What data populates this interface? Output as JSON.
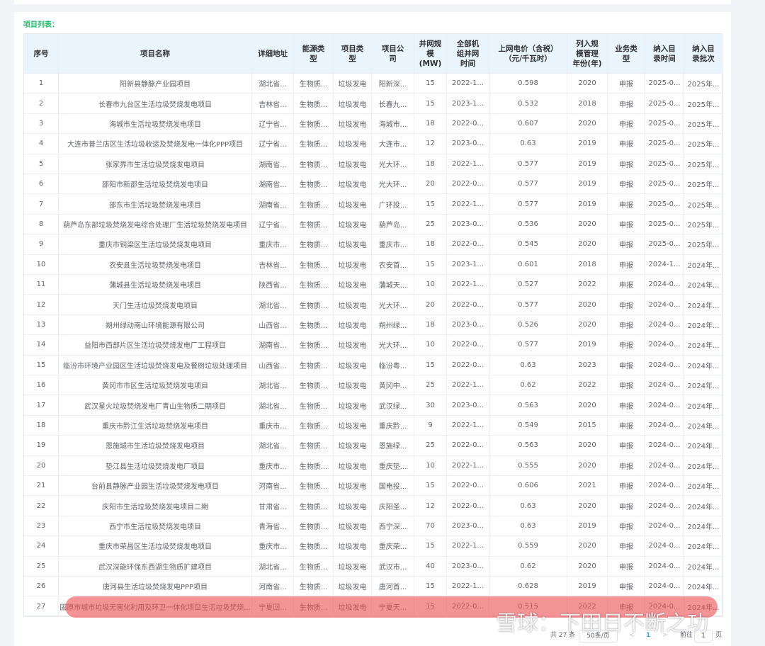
{
  "caption": "项目列表：",
  "table": {
    "headers": [
      "序号",
      "项目名称",
      "详细地址",
      "能源类\n型",
      "项目类\n型",
      "项目公\n司",
      "并网规\n模\n(MW)",
      "全部机\n组并网\n时间",
      "上网电价（含税）\n（元/千瓦时）",
      "列入规\n模管理\n年份(年)",
      "业务类\n型",
      "纳入目\n录时间",
      "纳入目\n录批次"
    ],
    "rows": [
      [
        "1",
        "阳新县静脉产业园项目",
        "湖北省...",
        "生物质...",
        "垃圾发电",
        "阳新深...",
        "15",
        "2022-1...",
        "0.598",
        "2020",
        "申报",
        "2025-0...",
        "2025年..."
      ],
      [
        "2",
        "长春市九台区生活垃圾焚烧发电项目",
        "吉林省...",
        "生物质...",
        "垃圾发电",
        "长春九...",
        "15",
        "2023-1...",
        "0.532",
        "2018",
        "申报",
        "2025-0...",
        "2025年..."
      ],
      [
        "3",
        "海城市生活垃圾焚烧发电项目",
        "辽宁省...",
        "生物质...",
        "垃圾发电",
        "海城市...",
        "18",
        "2022-0...",
        "0.607",
        "2020",
        "申报",
        "2025-0...",
        "2025年..."
      ],
      [
        "4",
        "大连市普兰店区生活垃圾收运及焚烧发电一体化PPP项目",
        "辽宁省...",
        "生物质...",
        "垃圾发电",
        "大连市...",
        "12",
        "2023-0...",
        "0.63",
        "2019",
        "申报",
        "2025-0...",
        "2025年..."
      ],
      [
        "5",
        "张家界市生活垃圾焚烧发电项目",
        "湖南省...",
        "生物质...",
        "垃圾发电",
        "光大环...",
        "18",
        "2022-1...",
        "0.577",
        "2019",
        "申报",
        "2025-0...",
        "2025年..."
      ],
      [
        "6",
        "邵阳市新邵生活垃圾焚烧发电项目",
        "湖南省...",
        "生物质...",
        "垃圾发电",
        "光大环...",
        "20",
        "2022-0...",
        "0.577",
        "2019",
        "申报",
        "2025-0...",
        "2025年..."
      ],
      [
        "7",
        "邵东市生活垃圾焚烧发电项目",
        "湖南省...",
        "生物质...",
        "垃圾发电",
        "广环投...",
        "15",
        "2022-1...",
        "0.577",
        "2019",
        "申报",
        "2025-0...",
        "2025年..."
      ],
      [
        "8",
        "葫芦岛东部垃圾焚烧发电综合处理厂生活垃圾焚烧发电项目",
        "辽宁省...",
        "生物质...",
        "垃圾发电",
        "葫芦岛...",
        "25",
        "2023-0...",
        "0.536",
        "2020",
        "申报",
        "2025-0...",
        "2025年..."
      ],
      [
        "9",
        "重庆市铜梁区生活垃圾焚烧发电项目",
        "重庆市...",
        "生物质...",
        "垃圾发电",
        "重庆市...",
        "18",
        "2022-0...",
        "0.545",
        "2020",
        "申报",
        "2025-0...",
        "2025年..."
      ],
      [
        "10",
        "农安县生活垃圾焚烧发电项目",
        "吉林省...",
        "生物质...",
        "垃圾发电",
        "农安首...",
        "15",
        "2023-1...",
        "0.601",
        "2018",
        "申报",
        "2024-1...",
        "2024年..."
      ],
      [
        "11",
        "蒲城县生活垃圾焚烧发电项目",
        "陕西省...",
        "生物质...",
        "垃圾发电",
        "蒲城天...",
        "10",
        "2022-1...",
        "0.527",
        "2022",
        "申报",
        "2024-0...",
        "2024年..."
      ],
      [
        "12",
        "天门生活垃圾焚烧发电项目",
        "湖北省...",
        "生物质...",
        "垃圾发电",
        "光大环...",
        "20",
        "2022-0...",
        "0.577",
        "2020",
        "申报",
        "2024-0...",
        "2024年..."
      ],
      [
        "13",
        "朔州绿动南山环境能源有限公司",
        "山西省...",
        "生物质...",
        "垃圾发电",
        "朔州绿...",
        "18",
        "2023-0...",
        "0.526",
        "2020",
        "申报",
        "2024-0...",
        "2024年..."
      ],
      [
        "14",
        "益阳市西部片区生活垃圾焚烧发电厂工程项目",
        "湖南省...",
        "生物质...",
        "垃圾发电",
        "光大环...",
        "10",
        "2022-0...",
        "0.577",
        "2019",
        "申报",
        "2024-0...",
        "2024年..."
      ],
      [
        "15",
        "临汾市环境产业园区生活垃圾焚烧发电及餐厨垃圾处理项目",
        "山西省...",
        "生物质...",
        "垃圾发电",
        "临汾粤...",
        "15",
        "2022-0...",
        "0.63",
        "2023",
        "申报",
        "2024-0...",
        "2024年..."
      ],
      [
        "16",
        "黄冈市市区生活垃圾焚烧发电项目",
        "湖北省...",
        "生物质...",
        "垃圾发电",
        "黄冈中...",
        "25",
        "2022-1...",
        "0.62",
        "2022",
        "申报",
        "2024-0...",
        "2024年..."
      ],
      [
        "17",
        "武汉星火垃圾焚烧发电厂青山生物质二期项目",
        "湖北省...",
        "生物质...",
        "垃圾发电",
        "武汉绿...",
        "30",
        "2023-0...",
        "0.563",
        "2020",
        "申报",
        "2024-0...",
        "2024年..."
      ],
      [
        "18",
        "重庆市黔江生活垃圾焚烧发电项目",
        "重庆市...",
        "生物质...",
        "垃圾发电",
        "重庆黔...",
        "9",
        "2022-1...",
        "0.549",
        "2015",
        "申报",
        "2024-0...",
        "2024年..."
      ],
      [
        "19",
        "恩施城市生活垃圾焚烧发电项目",
        "湖北省...",
        "生物质...",
        "垃圾发电",
        "恩施绿...",
        "25",
        "2022-0...",
        "0.563",
        "2020",
        "申报",
        "2024-0...",
        "2024年..."
      ],
      [
        "20",
        "垫江县生活垃圾焚烧发电厂项目",
        "重庆市...",
        "生物质...",
        "垃圾发电",
        "重庆垫...",
        "10",
        "2022-1...",
        "0.555",
        "2020",
        "申报",
        "2024-0...",
        "2024年..."
      ],
      [
        "21",
        "台前县静脉产业园生活垃圾焚烧发电项目",
        "河南省...",
        "生物质...",
        "垃圾发电",
        "国电投...",
        "15",
        "2022-0...",
        "0.606",
        "2021",
        "申报",
        "2024-0...",
        "2024年..."
      ],
      [
        "22",
        "庆阳市生活垃圾焚烧发电项目二期",
        "甘肃省...",
        "生物质...",
        "垃圾发电",
        "庆阳圣...",
        "12",
        "2022-0...",
        "0.63",
        "2020",
        "申报",
        "2024-0...",
        "2024年..."
      ],
      [
        "23",
        "西宁市生活垃圾焚烧发电项目",
        "青海省...",
        "生物质...",
        "垃圾发电",
        "西宁深...",
        "70",
        "2023-0...",
        "0.63",
        "2019",
        "申报",
        "2024-0...",
        "2024年..."
      ],
      [
        "24",
        "重庆市荣昌区生活垃圾焚烧发电项目",
        "重庆市...",
        "生物质...",
        "垃圾发电",
        "重庆荣...",
        "15",
        "2022-1...",
        "0.559",
        "2020",
        "申报",
        "2024-0...",
        "2024年..."
      ],
      [
        "25",
        "武汉深能环保东西湖生物质扩建项目",
        "湖北省...",
        "生物质...",
        "垃圾发电",
        "武汉市...",
        "40",
        "2023-0...",
        "0.62",
        "2020",
        "申报",
        "2024-0...",
        "2024年..."
      ],
      [
        "26",
        "唐河县生活垃圾焚烧发电PPP项目",
        "河南省...",
        "生物质...",
        "垃圾发电",
        "唐河首...",
        "15",
        "2022-1...",
        "0.628",
        "2019",
        "申报",
        "2024-0...",
        "2024年..."
      ],
      [
        "27",
        "固原市城市垃圾无害化利用及环卫一体化项目生活垃圾焚烧...",
        "宁夏回...",
        "生物质...",
        "垃圾发电",
        "宁夏天...",
        "15",
        "2022-0...",
        "0.515",
        "2022",
        "申报",
        "2024-0...",
        "2024年..."
      ]
    ]
  },
  "pagination": {
    "total": "共 27 条",
    "page_size": "50条/页",
    "prev": "<",
    "page": "1",
    "next": ">",
    "goto": "前往",
    "goto_value": "1",
    "goto_unit": "页"
  },
  "watermark": "雪球：下田日不断之功"
}
